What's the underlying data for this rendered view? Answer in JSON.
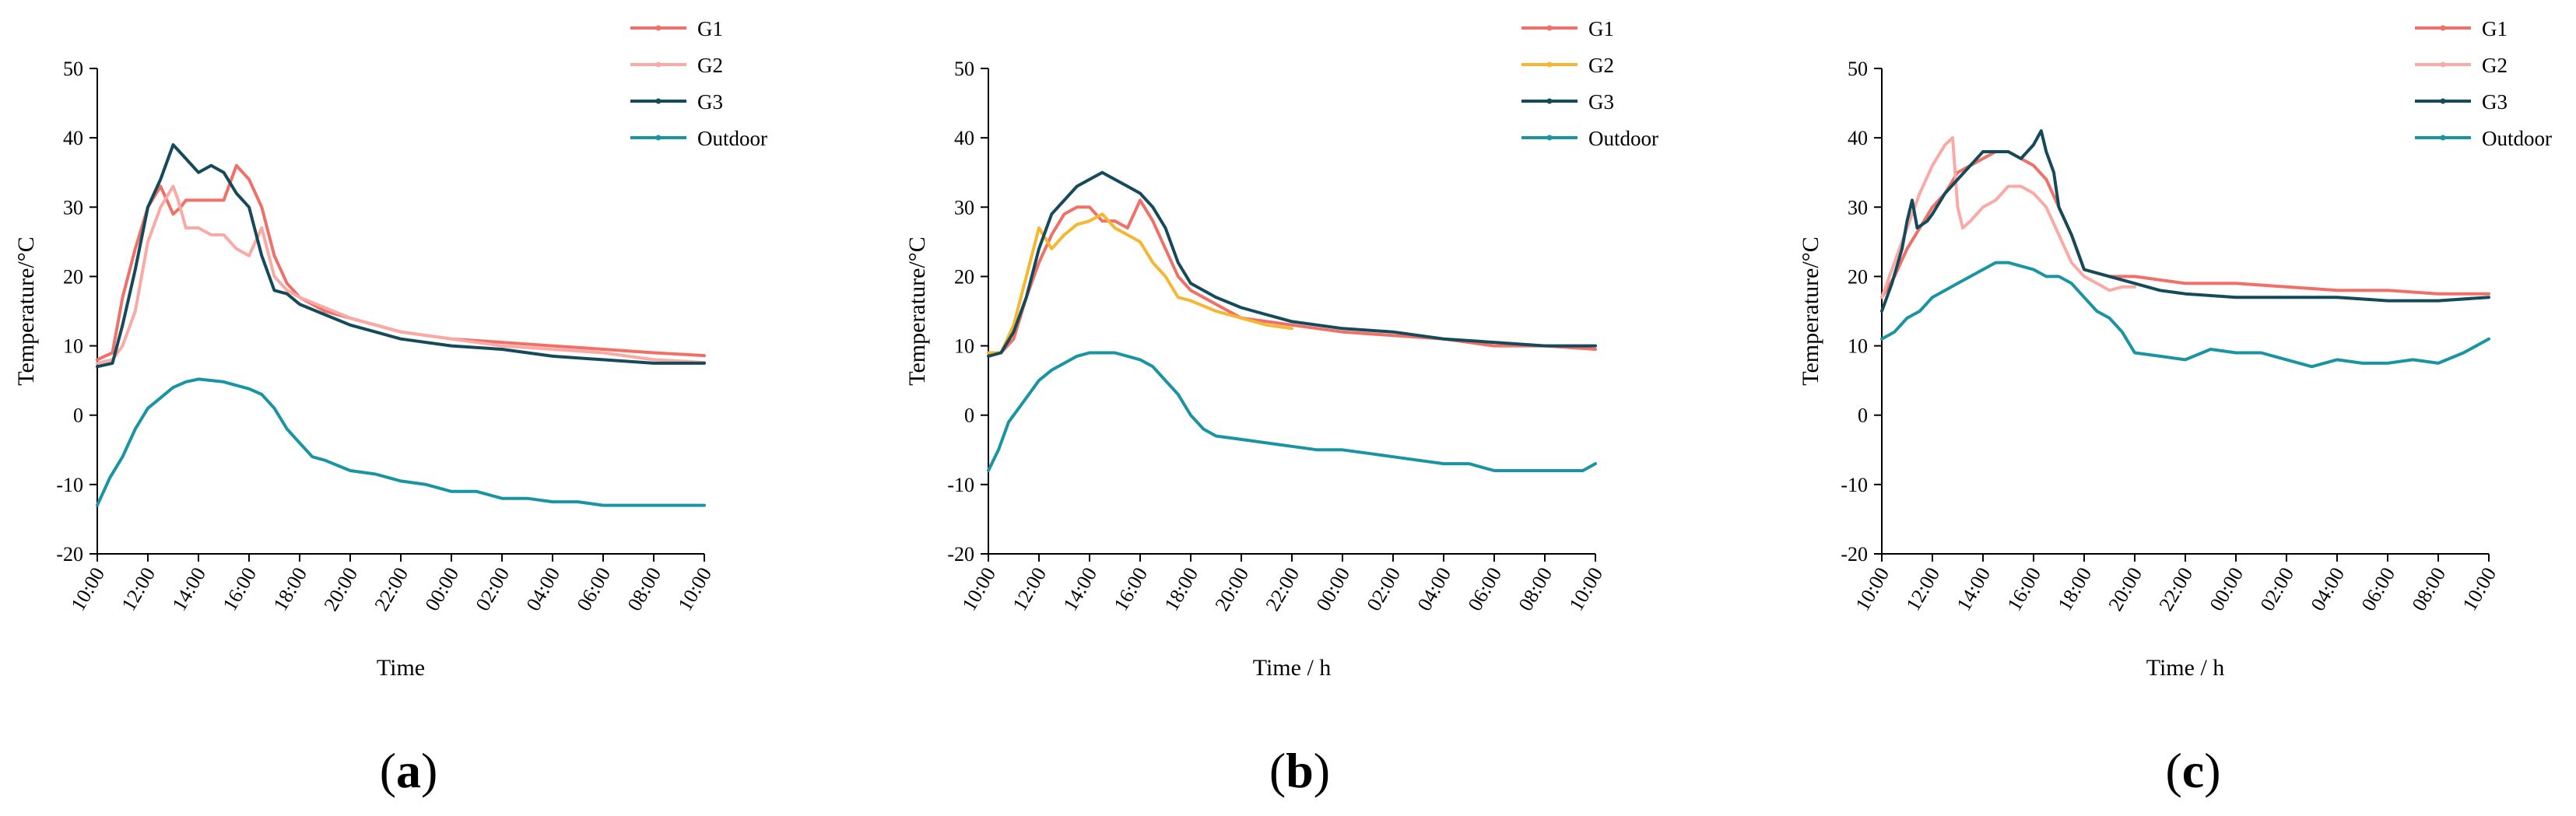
{
  "chart_data": [
    {
      "type": "line",
      "panel_label": {
        "open": "(",
        "letter": "a",
        "close": ")"
      },
      "xlabel": "Time",
      "ylabel": "Temperature/°C",
      "ylim": [
        -20,
        50
      ],
      "yticks": [
        -20,
        -10,
        0,
        10,
        20,
        30,
        40,
        50
      ],
      "xlim": [
        0,
        24
      ],
      "xtick_labels": [
        "10:00",
        "12:00",
        "14:00",
        "16:00",
        "18:00",
        "20:00",
        "22:00",
        "00:00",
        "02:00",
        "04:00",
        "06:00",
        "08:00",
        "10:00"
      ],
      "legend": [
        "G1",
        "G2",
        "G3",
        "Outdoor"
      ],
      "series": [
        {
          "name": "G1",
          "color": "#f07068",
          "x": [
            0,
            0.6,
            1,
            1.5,
            2,
            2.5,
            3,
            3.3,
            3.5,
            4,
            4.5,
            5,
            5.5,
            6,
            6.5,
            7,
            7.5,
            8,
            9,
            10,
            11,
            12,
            14,
            16,
            18,
            20,
            22,
            24
          ],
          "y": [
            8,
            9,
            17,
            24,
            30,
            33,
            29,
            30,
            31,
            31,
            31,
            31,
            36,
            34,
            30,
            23,
            19,
            17,
            15,
            14,
            13,
            12,
            11,
            10.5,
            10,
            9.5,
            9,
            8.6
          ]
        },
        {
          "name": "G2",
          "color": "#f9aaa4",
          "x": [
            0,
            0.6,
            1,
            1.5,
            2,
            2.5,
            3,
            3.2,
            3.5,
            4,
            4.5,
            5,
            5.5,
            6,
            6.5,
            7,
            7.5,
            8,
            10,
            12,
            14,
            16,
            18,
            20,
            22,
            24
          ],
          "y": [
            7.5,
            8,
            10,
            15,
            25,
            30,
            33,
            31,
            27,
            27,
            26,
            26,
            24,
            23,
            27,
            20,
            18,
            17,
            14,
            12,
            11,
            10,
            9.5,
            9,
            8,
            7.6
          ]
        },
        {
          "name": "G3",
          "color": "#154a5a",
          "x": [
            0,
            0.6,
            1,
            1.5,
            2,
            2.5,
            3,
            3.5,
            4,
            4.5,
            5,
            5.5,
            6,
            6.5,
            7,
            7.5,
            8,
            9,
            10,
            11,
            12,
            14,
            16,
            18,
            20,
            22,
            24
          ],
          "y": [
            7,
            7.5,
            13,
            21,
            30,
            34,
            39,
            37,
            35,
            36,
            35,
            32,
            30,
            23,
            18,
            17.5,
            16,
            14.5,
            13,
            12,
            11,
            10,
            9.5,
            8.5,
            8,
            7.5,
            7.5
          ]
        },
        {
          "name": "Outdoor",
          "color": "#1994a3",
          "x": [
            0,
            0.5,
            1,
            1.5,
            2,
            2.5,
            3,
            3.5,
            4,
            4.5,
            5,
            5.5,
            6,
            6.5,
            7,
            7.5,
            8,
            8.5,
            9,
            10,
            11,
            12,
            13,
            14,
            15,
            16,
            17,
            18,
            19,
            20,
            21,
            22,
            23,
            24
          ],
          "y": [
            -13,
            -9,
            -6,
            -2,
            1,
            2.5,
            4,
            4.8,
            5.2,
            5,
            4.8,
            4.3,
            3.8,
            3,
            1,
            -2,
            -4,
            -6,
            -6.5,
            -8,
            -8.5,
            -9.5,
            -10,
            -11,
            -11,
            -12,
            -12,
            -12.5,
            -12.5,
            -13,
            -13,
            -13,
            -13,
            -13
          ]
        }
      ]
    },
    {
      "type": "line",
      "panel_label": {
        "open": "(",
        "letter": "b",
        "close": ")"
      },
      "xlabel": "Time / h",
      "ylabel": "Temperature/°C",
      "ylim": [
        -20,
        50
      ],
      "yticks": [
        -20,
        -10,
        0,
        10,
        20,
        30,
        40,
        50
      ],
      "xlim": [
        0,
        24
      ],
      "xtick_labels": [
        "10:00",
        "12:00",
        "14:00",
        "16:00",
        "18:00",
        "20:00",
        "22:00",
        "00:00",
        "02:00",
        "04:00",
        "06:00",
        "08:00",
        "10:00"
      ],
      "legend": [
        "G1",
        "G2",
        "G3",
        "Outdoor"
      ],
      "series": [
        {
          "name": "G1",
          "color": "#f07068",
          "x": [
            0,
            0.5,
            1,
            1.5,
            2,
            2.5,
            3,
            3.5,
            4,
            4.5,
            5,
            5.5,
            6,
            6.5,
            7,
            7.5,
            8,
            9,
            10,
            12,
            14,
            16,
            18,
            20,
            22,
            24
          ],
          "y": [
            9,
            9,
            11,
            17,
            22,
            26,
            29,
            30,
            30,
            28,
            28,
            27,
            31,
            28,
            24,
            20,
            18,
            16,
            14,
            13,
            12,
            11.5,
            11,
            10,
            10,
            9.5
          ]
        },
        {
          "name": "G2",
          "color": "#f5b731",
          "x": [
            0,
            0.5,
            1,
            1.5,
            2,
            2.5,
            3,
            3.5,
            4,
            4.5,
            5,
            5.5,
            6,
            6.5,
            7,
            7.5,
            8,
            9,
            10,
            11,
            12
          ],
          "y": [
            9,
            9,
            13,
            20,
            27,
            24,
            26,
            27.5,
            28,
            29,
            27,
            26,
            25,
            22,
            20,
            17,
            16.5,
            15,
            14,
            13,
            12.5
          ]
        },
        {
          "name": "G3",
          "color": "#154a5a",
          "x": [
            0,
            0.5,
            1,
            1.5,
            2,
            2.5,
            3,
            3.5,
            4,
            4.5,
            5,
            5.5,
            6,
            6.5,
            7,
            7.5,
            8,
            9,
            10,
            11,
            12,
            14,
            16,
            18,
            20,
            22,
            24
          ],
          "y": [
            8.5,
            9,
            12,
            17,
            24,
            29,
            31,
            33,
            34,
            35,
            34,
            33,
            32,
            30,
            27,
            22,
            19,
            17,
            15.5,
            14.5,
            13.5,
            12.5,
            12,
            11,
            10.5,
            10,
            10
          ]
        },
        {
          "name": "Outdoor",
          "color": "#1994a3",
          "x": [
            0,
            0.4,
            0.8,
            1.2,
            1.6,
            2,
            2.5,
            3,
            3.5,
            4,
            4.5,
            5,
            5.5,
            6,
            6.5,
            7,
            7.5,
            8,
            8.5,
            9,
            10,
            11,
            12,
            13,
            14,
            15,
            16,
            17,
            18,
            19,
            20,
            21,
            22,
            23,
            23.5,
            24
          ],
          "y": [
            -8,
            -5,
            -1,
            1,
            3,
            5,
            6.5,
            7.5,
            8.5,
            9,
            9,
            9,
            8.5,
            8,
            7,
            5,
            3,
            0,
            -2,
            -3,
            -3.5,
            -4,
            -4.5,
            -5,
            -5,
            -5.5,
            -6,
            -6.5,
            -7,
            -7,
            -8,
            -8,
            -8,
            -8,
            -8,
            -7
          ]
        }
      ]
    },
    {
      "type": "line",
      "panel_label": {
        "open": "(",
        "letter": "c",
        "close": ")"
      },
      "xlabel": "Time / h",
      "ylabel": "Temperature/°C",
      "ylim": [
        -20,
        50
      ],
      "yticks": [
        -20,
        -10,
        0,
        10,
        20,
        30,
        40,
        50
      ],
      "xlim": [
        0,
        24
      ],
      "xtick_labels": [
        "10:00",
        "12:00",
        "14:00",
        "16:00",
        "18:00",
        "20:00",
        "22:00",
        "00:00",
        "02:00",
        "04:00",
        "06:00",
        "08:00",
        "10:00"
      ],
      "legend": [
        "G1",
        "G2",
        "G3",
        "Outdoor"
      ],
      "series": [
        {
          "name": "G1",
          "color": "#f07068",
          "x": [
            0,
            0.5,
            1,
            1.5,
            2,
            2.5,
            3,
            3.5,
            4,
            4.5,
            5,
            5.5,
            6,
            6.5,
            7,
            7.5,
            8,
            9,
            10,
            11,
            12,
            14,
            16,
            18,
            20,
            22,
            24
          ],
          "y": [
            17,
            20,
            24,
            27,
            30,
            32,
            35,
            36,
            37,
            38,
            38,
            37,
            36,
            34,
            30,
            26,
            21,
            20,
            20,
            19.5,
            19,
            19,
            18.5,
            18,
            18,
            17.5,
            17.5
          ]
        },
        {
          "name": "G2",
          "color": "#f9aaa4",
          "x": [
            0,
            0.5,
            1,
            1.5,
            2,
            2.5,
            2.8,
            3,
            3.2,
            3.5,
            4,
            4.5,
            5,
            5.5,
            6,
            6.5,
            7,
            7.5,
            8,
            8.5,
            9,
            9.5,
            10
          ],
          "y": [
            17,
            22,
            27,
            32,
            36,
            39,
            40,
            30,
            27,
            28,
            30,
            31,
            33,
            33,
            32,
            30,
            26,
            22,
            20,
            19,
            18,
            18.5,
            18.5
          ]
        },
        {
          "name": "G3",
          "color": "#154a5a",
          "x": [
            0,
            0.4,
            0.8,
            1,
            1.2,
            1.4,
            1.8,
            2,
            2.5,
            3,
            3.5,
            4,
            4.5,
            5,
            5.5,
            6,
            6.3,
            6.5,
            6.8,
            7,
            7.5,
            8,
            9,
            10,
            11,
            12,
            14,
            16,
            18,
            20,
            22,
            24
          ],
          "y": [
            15,
            19,
            24,
            28,
            31,
            27,
            28,
            29,
            32,
            34,
            36,
            38,
            38,
            38,
            37,
            39,
            41,
            38,
            35,
            30,
            26,
            21,
            20,
            19,
            18,
            17.5,
            17,
            17,
            17,
            16.5,
            16.5,
            17
          ]
        },
        {
          "name": "Outdoor",
          "color": "#1994a3",
          "x": [
            0,
            0.5,
            1,
            1.5,
            2,
            2.5,
            3,
            3.5,
            4,
            4.5,
            5,
            5.5,
            6,
            6.5,
            7,
            7.5,
            8,
            8.5,
            9,
            9.5,
            10,
            11,
            12,
            13,
            14,
            15,
            16,
            17,
            18,
            19,
            20,
            21,
            22,
            23,
            24
          ],
          "y": [
            11,
            12,
            14,
            15,
            17,
            18,
            19,
            20,
            21,
            22,
            22,
            21.5,
            21,
            20,
            20,
            19,
            17,
            15,
            14,
            12,
            9,
            8.5,
            8,
            9.5,
            9,
            9,
            8,
            7,
            8,
            7.5,
            7.5,
            8,
            7.5,
            9,
            11
          ]
        }
      ]
    }
  ]
}
